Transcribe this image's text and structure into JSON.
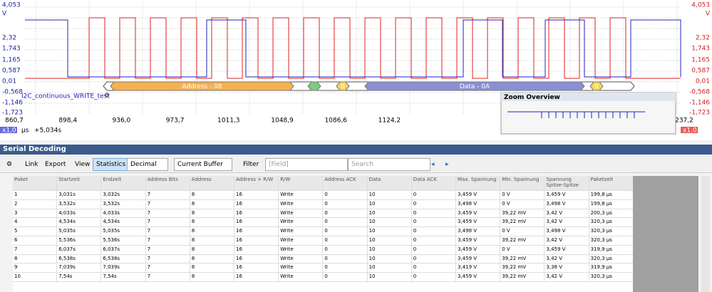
{
  "scope": {
    "left_axis": [
      "4,053",
      "V",
      "2,32",
      "1,743",
      "1,165",
      "0,587",
      "0,01",
      "-0,568",
      "-1,146",
      "-1,723"
    ],
    "right_axis": [
      "4,053",
      "V",
      "2,32",
      "1,743",
      "1,165",
      "0,587",
      "0,01",
      "-0,568",
      "-1,146",
      "-1,723"
    ],
    "time_axis": [
      "860,7",
      "898,4",
      "936,0",
      "973,7",
      "1011,3",
      "1048,9",
      "1086,6",
      "1124,2",
      "237,2"
    ],
    "channel_label": "I2C_continuous_WRITE_test",
    "decode": {
      "address": "Address - 08",
      "ack_1": "0",
      "data": "Data - 0A",
      "ack_2": "0"
    },
    "zoom_overview": "Zoom Overview",
    "zoom_left": "x1,0",
    "unit": "µs",
    "offset": "+5,034s",
    "zoom_right": "x1,0"
  },
  "panel": {
    "title": "Serial Decoding",
    "toolbar": {
      "link": "Link",
      "export": "Export",
      "view": "View",
      "statistics": "Statistics",
      "format": "Decimal",
      "buffer": "Current Buffer",
      "filter": "Filter",
      "field": "[Field]",
      "search": "Search"
    },
    "table": {
      "columns": [
        "Paket",
        "Startzeit",
        "Endzeit",
        "Address Bits",
        "Address",
        "Address + R/W",
        "R/W",
        "Address ACK",
        "Data",
        "Data ACK",
        "Max. Spannung",
        "Min. Spannung",
        "Spannung Spitze-Spitze",
        "Paketzeit"
      ],
      "rows": [
        [
          "1",
          "3,031s",
          "3,032s",
          "7",
          "8",
          "16",
          "Write",
          "0",
          "10",
          "0",
          "3,459 V",
          "0 V",
          "3,459 V",
          "199,8 µs"
        ],
        [
          "2",
          "3,532s",
          "3,532s",
          "7",
          "8",
          "16",
          "Write",
          "0",
          "10",
          "0",
          "3,498 V",
          "0 V",
          "3,498 V",
          "199,8 µs"
        ],
        [
          "3",
          "4,033s",
          "4,033s",
          "7",
          "8",
          "16",
          "Write",
          "0",
          "10",
          "0",
          "3,459 V",
          "39,22 mV",
          "3,42 V",
          "200,3 µs"
        ],
        [
          "4",
          "4,534s",
          "4,534s",
          "7",
          "8",
          "16",
          "Write",
          "0",
          "10",
          "0",
          "3,459 V",
          "39,22 mV",
          "3,42 V",
          "320,3 µs"
        ],
        [
          "5",
          "5,035s",
          "5,035s",
          "7",
          "8",
          "16",
          "Write",
          "0",
          "10",
          "0",
          "3,498 V",
          "0 V",
          "3,498 V",
          "320,3 µs"
        ],
        [
          "6",
          "5,536s",
          "5,536s",
          "7",
          "8",
          "16",
          "Write",
          "0",
          "10",
          "0",
          "3,459 V",
          "39,22 mV",
          "3,42 V",
          "320,3 µs"
        ],
        [
          "7",
          "6,037s",
          "6,037s",
          "7",
          "8",
          "16",
          "Write",
          "0",
          "10",
          "0",
          "3,459 V",
          "0 V",
          "3,459 V",
          "319,9 µs"
        ],
        [
          "8",
          "6,538s",
          "6,538s",
          "7",
          "8",
          "16",
          "Write",
          "0",
          "10",
          "0",
          "3,459 V",
          "39,22 mV",
          "3,42 V",
          "320,3 µs"
        ],
        [
          "9",
          "7,039s",
          "7,039s",
          "7",
          "8",
          "16",
          "Write",
          "0",
          "10",
          "0",
          "3,419 V",
          "39,22 mV",
          "3,38 V",
          "319,9 µs"
        ],
        [
          "10",
          "7,54s",
          "7,54s",
          "7",
          "8",
          "16",
          "Write",
          "0",
          "10",
          "0",
          "3,459 V",
          "39,22 mV",
          "3,42 V",
          "320,3 µs"
        ]
      ]
    }
  }
}
